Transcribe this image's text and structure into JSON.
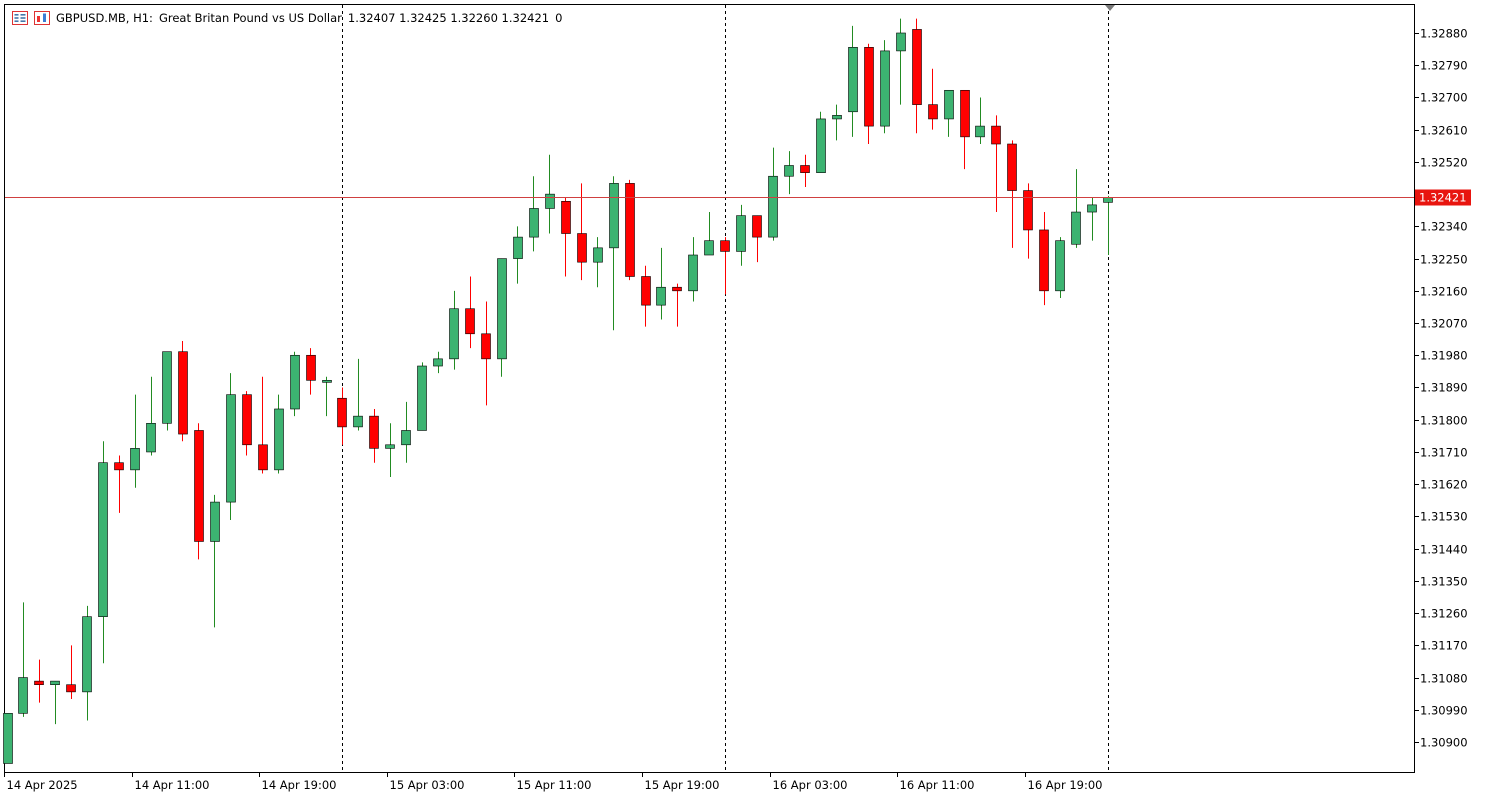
{
  "header": {
    "symbol": "GBPUSD.MB, H1:",
    "description": "Great Britan Pound vs US Dollar",
    "ohlc": "1.32407 1.32425 1.32260 1.32421",
    "volume": "0"
  },
  "colors": {
    "bull": "#3cb371",
    "bear": "#ff0000",
    "bullBorder": "#000000",
    "bearBorder": "#000000",
    "wickBull": "#228b22",
    "wickBear": "#ff0000",
    "priceLine": "#d04040",
    "priceLabelBg": "#e8150f",
    "priceLabelText": "#ffffff",
    "axisText": "#000000",
    "separator": "#000000",
    "frame": "#000000"
  },
  "chart_data": {
    "type": "candlestick",
    "timeframe": "H1",
    "current_price": 1.32421,
    "current_price_label": "1.32421",
    "ylim": [
      1.3081,
      1.3297
    ],
    "y_ticks": [
      "1.32880",
      "1.32790",
      "1.32700",
      "1.32610",
      "1.32520",
      "1.32340",
      "1.32250",
      "1.32160",
      "1.32070",
      "1.31980",
      "1.31890",
      "1.31800",
      "1.31710",
      "1.31620",
      "1.31530",
      "1.31440",
      "1.31350",
      "1.31260",
      "1.31170",
      "1.31080",
      "1.30990",
      "1.30900"
    ],
    "x_tick_labels": [
      {
        "index": 0,
        "label": "14 Apr 2025"
      },
      {
        "index": 8,
        "label": "14 Apr 11:00"
      },
      {
        "index": 16,
        "label": "14 Apr 19:00"
      },
      {
        "index": 24,
        "label": "15 Apr 03:00"
      },
      {
        "index": 32,
        "label": "15 Apr 11:00"
      },
      {
        "index": 40,
        "label": "15 Apr 19:00"
      },
      {
        "index": 48,
        "label": "16 Apr 03:00"
      },
      {
        "index": 56,
        "label": "16 Apr 11:00"
      },
      {
        "index": 64,
        "label": "16 Apr 19:00"
      }
    ],
    "period_separators": [
      21,
      45,
      69
    ],
    "candles": [
      {
        "o": 1.3084,
        "h": 1.3098,
        "l": 1.3084,
        "c": 1.3098
      },
      {
        "o": 1.3098,
        "h": 1.3129,
        "l": 1.3097,
        "c": 1.3108
      },
      {
        "o": 1.3107,
        "h": 1.3113,
        "l": 1.3101,
        "c": 1.3106
      },
      {
        "o": 1.3106,
        "h": 1.3107,
        "l": 1.3095,
        "c": 1.3107
      },
      {
        "o": 1.3106,
        "h": 1.3117,
        "l": 1.3102,
        "c": 1.3104
      },
      {
        "o": 1.3104,
        "h": 1.3128,
        "l": 1.3096,
        "c": 1.3125
      },
      {
        "o": 1.3125,
        "h": 1.3174,
        "l": 1.3112,
        "c": 1.3168
      },
      {
        "o": 1.3168,
        "h": 1.317,
        "l": 1.3154,
        "c": 1.3166
      },
      {
        "o": 1.3166,
        "h": 1.3187,
        "l": 1.3161,
        "c": 1.3172
      },
      {
        "o": 1.3171,
        "h": 1.3192,
        "l": 1.317,
        "c": 1.3179
      },
      {
        "o": 1.3179,
        "h": 1.3199,
        "l": 1.3177,
        "c": 1.3199
      },
      {
        "o": 1.3199,
        "h": 1.3202,
        "l": 1.3174,
        "c": 1.3176
      },
      {
        "o": 1.3177,
        "h": 1.3179,
        "l": 1.3141,
        "c": 1.3146
      },
      {
        "o": 1.3146,
        "h": 1.3159,
        "l": 1.3122,
        "c": 1.3157
      },
      {
        "o": 1.3157,
        "h": 1.3193,
        "l": 1.3152,
        "c": 1.3187
      },
      {
        "o": 1.3187,
        "h": 1.3188,
        "l": 1.317,
        "c": 1.3173
      },
      {
        "o": 1.3173,
        "h": 1.3192,
        "l": 1.3165,
        "c": 1.3166
      },
      {
        "o": 1.3166,
        "h": 1.3187,
        "l": 1.3165,
        "c": 1.3183
      },
      {
        "o": 1.3183,
        "h": 1.3199,
        "l": 1.3181,
        "c": 1.3198
      },
      {
        "o": 1.3198,
        "h": 1.32,
        "l": 1.3187,
        "c": 1.3191
      },
      {
        "o": 1.3191,
        "h": 1.3192,
        "l": 1.3181,
        "c": 1.3191
      },
      {
        "o": 1.3186,
        "h": 1.3189,
        "l": 1.3173,
        "c": 1.3178
      },
      {
        "o": 1.3178,
        "h": 1.3197,
        "l": 1.3177,
        "c": 1.3181
      },
      {
        "o": 1.3181,
        "h": 1.3183,
        "l": 1.3168,
        "c": 1.3172
      },
      {
        "o": 1.3172,
        "h": 1.3179,
        "l": 1.3164,
        "c": 1.3173
      },
      {
        "o": 1.3173,
        "h": 1.3185,
        "l": 1.3168,
        "c": 1.3177
      },
      {
        "o": 1.3177,
        "h": 1.3196,
        "l": 1.3177,
        "c": 1.3195
      },
      {
        "o": 1.3195,
        "h": 1.3199,
        "l": 1.3193,
        "c": 1.3197
      },
      {
        "o": 1.3197,
        "h": 1.3216,
        "l": 1.3194,
        "c": 1.3211
      },
      {
        "o": 1.3211,
        "h": 1.322,
        "l": 1.32,
        "c": 1.3204
      },
      {
        "o": 1.3204,
        "h": 1.3213,
        "l": 1.3184,
        "c": 1.3197
      },
      {
        "o": 1.3197,
        "h": 1.3225,
        "l": 1.3192,
        "c": 1.3225
      },
      {
        "o": 1.3225,
        "h": 1.3234,
        "l": 1.3218,
        "c": 1.3231
      },
      {
        "o": 1.3231,
        "h": 1.3248,
        "l": 1.3227,
        "c": 1.3239
      },
      {
        "o": 1.3239,
        "h": 1.3254,
        "l": 1.3232,
        "c": 1.3243
      },
      {
        "o": 1.3241,
        "h": 1.3242,
        "l": 1.322,
        "c": 1.3232
      },
      {
        "o": 1.3232,
        "h": 1.3246,
        "l": 1.3219,
        "c": 1.3224
      },
      {
        "o": 1.3224,
        "h": 1.3231,
        "l": 1.3217,
        "c": 1.3228
      },
      {
        "o": 1.3228,
        "h": 1.3248,
        "l": 1.3205,
        "c": 1.3246
      },
      {
        "o": 1.3246,
        "h": 1.3247,
        "l": 1.3219,
        "c": 1.322
      },
      {
        "o": 1.322,
        "h": 1.3223,
        "l": 1.3206,
        "c": 1.3212
      },
      {
        "o": 1.3212,
        "h": 1.3228,
        "l": 1.3208,
        "c": 1.3217
      },
      {
        "o": 1.3217,
        "h": 1.3218,
        "l": 1.3206,
        "c": 1.3216
      },
      {
        "o": 1.3216,
        "h": 1.3231,
        "l": 1.3213,
        "c": 1.3226
      },
      {
        "o": 1.3226,
        "h": 1.3238,
        "l": 1.3226,
        "c": 1.323
      },
      {
        "o": 1.323,
        "h": 1.3231,
        "l": 1.3215,
        "c": 1.3227
      },
      {
        "o": 1.3227,
        "h": 1.324,
        "l": 1.3223,
        "c": 1.3237
      },
      {
        "o": 1.3237,
        "h": 1.3237,
        "l": 1.3224,
        "c": 1.3231
      },
      {
        "o": 1.3231,
        "h": 1.3256,
        "l": 1.323,
        "c": 1.3248
      },
      {
        "o": 1.3248,
        "h": 1.3255,
        "l": 1.3243,
        "c": 1.3251
      },
      {
        "o": 1.3251,
        "h": 1.3254,
        "l": 1.3245,
        "c": 1.3249
      },
      {
        "o": 1.3249,
        "h": 1.3266,
        "l": 1.3249,
        "c": 1.3264
      },
      {
        "o": 1.3264,
        "h": 1.3268,
        "l": 1.3258,
        "c": 1.3265
      },
      {
        "o": 1.3266,
        "h": 1.329,
        "l": 1.3259,
        "c": 1.3284
      },
      {
        "o": 1.3284,
        "h": 1.3285,
        "l": 1.3257,
        "c": 1.3262
      },
      {
        "o": 1.3262,
        "h": 1.3286,
        "l": 1.326,
        "c": 1.3283
      },
      {
        "o": 1.3283,
        "h": 1.3292,
        "l": 1.3268,
        "c": 1.3288
      },
      {
        "o": 1.3289,
        "h": 1.3292,
        "l": 1.326,
        "c": 1.3268
      },
      {
        "o": 1.3268,
        "h": 1.3278,
        "l": 1.3261,
        "c": 1.3264
      },
      {
        "o": 1.3264,
        "h": 1.3272,
        "l": 1.3259,
        "c": 1.3272
      },
      {
        "o": 1.3272,
        "h": 1.3272,
        "l": 1.325,
        "c": 1.3259
      },
      {
        "o": 1.3259,
        "h": 1.327,
        "l": 1.3257,
        "c": 1.3262
      },
      {
        "o": 1.3262,
        "h": 1.3265,
        "l": 1.3238,
        "c": 1.3257
      },
      {
        "o": 1.3257,
        "h": 1.3258,
        "l": 1.3228,
        "c": 1.3244
      },
      {
        "o": 1.3244,
        "h": 1.3246,
        "l": 1.3225,
        "c": 1.3233
      },
      {
        "o": 1.3233,
        "h": 1.3238,
        "l": 1.3212,
        "c": 1.3216
      },
      {
        "o": 1.3216,
        "h": 1.3231,
        "l": 1.3214,
        "c": 1.323
      },
      {
        "o": 1.3229,
        "h": 1.325,
        "l": 1.3228,
        "c": 1.3238
      },
      {
        "o": 1.3238,
        "h": 1.3242,
        "l": 1.323,
        "c": 1.324
      },
      {
        "o": 1.32407,
        "h": 1.32425,
        "l": 1.3226,
        "c": 1.32421
      }
    ]
  }
}
